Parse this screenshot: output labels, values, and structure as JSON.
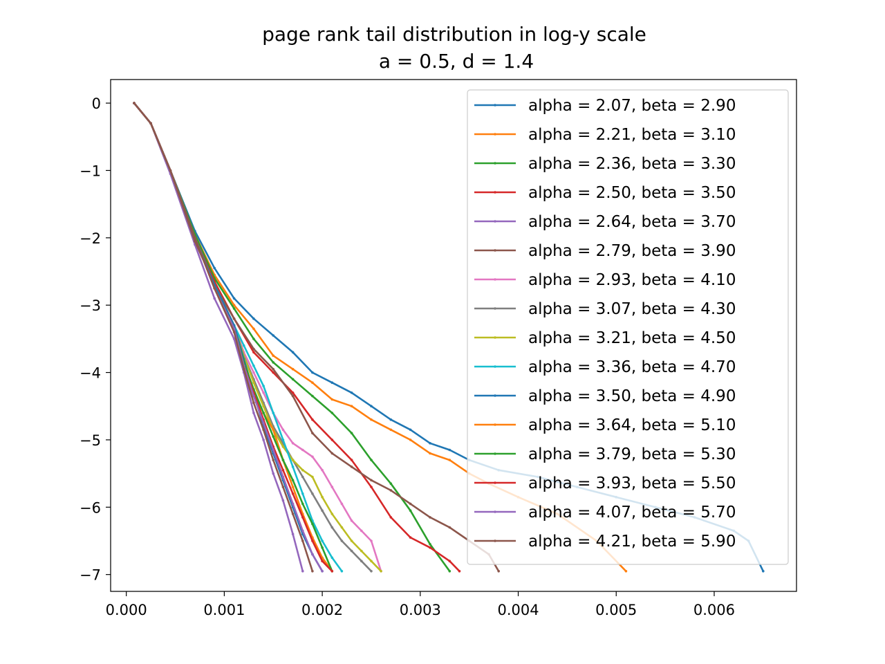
{
  "chart_data": {
    "type": "line",
    "title": "page rank tail distribution in log-y scale",
    "subtitle": "a = 0.5, d = 1.4",
    "xlabel": "",
    "ylabel": "",
    "xlim": [
      -0.00016,
      0.00684
    ],
    "ylim": [
      -7.25,
      0.35
    ],
    "xticks": [
      0.0,
      0.001,
      0.002,
      0.003,
      0.004,
      0.005,
      0.006
    ],
    "xtick_labels": [
      "0.000",
      "0.001",
      "0.002",
      "0.003",
      "0.004",
      "0.005",
      "0.006"
    ],
    "yticks": [
      0,
      -1,
      -2,
      -3,
      -4,
      -5,
      -6,
      -7
    ],
    "ytick_labels": [
      "0",
      "−1",
      "−2",
      "−3",
      "−4",
      "−5",
      "−6",
      "−7"
    ],
    "grid": false,
    "legend_position": "upper-right",
    "series": [
      {
        "name": "alpha = 2.07, beta = 2.90",
        "color": "#1f77b4",
        "x": [
          8e-05,
          0.00025,
          0.00045,
          0.0007,
          0.0009,
          0.0011,
          0.0013,
          0.0015,
          0.0017,
          0.0019,
          0.0021,
          0.0023,
          0.0025,
          0.0027,
          0.0029,
          0.0031,
          0.0033,
          0.0035,
          0.0038,
          0.0042,
          0.0046,
          0.005,
          0.0054,
          0.0058,
          0.0062,
          0.00635,
          0.0065
        ],
        "y": [
          0.0,
          -0.3,
          -1.0,
          -1.9,
          -2.45,
          -2.9,
          -3.2,
          -3.45,
          -3.7,
          -4.0,
          -4.15,
          -4.3,
          -4.5,
          -4.7,
          -4.85,
          -5.05,
          -5.15,
          -5.3,
          -5.45,
          -5.55,
          -5.7,
          -5.85,
          -6.0,
          -6.15,
          -6.35,
          -6.5,
          -6.95
        ]
      },
      {
        "name": "alpha = 2.21, beta = 3.10",
        "color": "#ff7f0e",
        "x": [
          8e-05,
          0.00025,
          0.00045,
          0.0007,
          0.0009,
          0.0011,
          0.0013,
          0.0015,
          0.0017,
          0.0019,
          0.0021,
          0.0023,
          0.0025,
          0.0027,
          0.0029,
          0.0031,
          0.0033,
          0.0035,
          0.0037,
          0.004,
          0.0044,
          0.0048,
          0.0051
        ],
        "y": [
          0.0,
          -0.3,
          -1.0,
          -1.95,
          -2.55,
          -3.0,
          -3.35,
          -3.75,
          -3.95,
          -4.15,
          -4.4,
          -4.5,
          -4.7,
          -4.85,
          -5.0,
          -5.2,
          -5.3,
          -5.5,
          -5.65,
          -5.85,
          -6.1,
          -6.5,
          -6.95
        ]
      },
      {
        "name": "alpha = 2.36, beta = 3.30",
        "color": "#2ca02c",
        "x": [
          8e-05,
          0.00025,
          0.00045,
          0.0007,
          0.0009,
          0.0011,
          0.0013,
          0.0015,
          0.0017,
          0.0019,
          0.0021,
          0.0023,
          0.0025,
          0.0027,
          0.0029,
          0.0031,
          0.0033
        ],
        "y": [
          0.0,
          -0.3,
          -1.0,
          -1.95,
          -2.6,
          -3.05,
          -3.5,
          -3.85,
          -4.1,
          -4.35,
          -4.6,
          -4.9,
          -5.3,
          -5.65,
          -6.05,
          -6.55,
          -6.95
        ]
      },
      {
        "name": "alpha = 2.50, beta = 3.50",
        "color": "#d62728",
        "x": [
          8e-05,
          0.00025,
          0.00045,
          0.0007,
          0.0009,
          0.0011,
          0.0013,
          0.0015,
          0.0017,
          0.0019,
          0.0021,
          0.0023,
          0.0025,
          0.0027,
          0.0029,
          0.0031,
          0.0033,
          0.0034
        ],
        "y": [
          0.0,
          -0.3,
          -1.0,
          -2.0,
          -2.65,
          -3.2,
          -3.7,
          -4.0,
          -4.3,
          -4.7,
          -5.0,
          -5.3,
          -5.7,
          -6.15,
          -6.45,
          -6.6,
          -6.8,
          -6.95
        ]
      },
      {
        "name": "alpha = 2.64, beta = 3.70",
        "color": "#9467bd",
        "x": [
          8e-05,
          0.00025,
          0.00045,
          0.0007,
          0.0009,
          0.0011,
          0.0012,
          0.0013,
          0.0014,
          0.0015,
          0.0016,
          0.0017,
          0.0018
        ],
        "y": [
          0.0,
          -0.3,
          -1.05,
          -2.1,
          -2.9,
          -3.5,
          -4.0,
          -4.6,
          -5.0,
          -5.5,
          -5.9,
          -6.4,
          -6.95
        ]
      },
      {
        "name": "alpha = 2.79, beta = 3.90",
        "color": "#8c564b",
        "x": [
          8e-05,
          0.00025,
          0.00045,
          0.0007,
          0.0009,
          0.0011,
          0.0013,
          0.0015,
          0.0017,
          0.0019,
          0.0021,
          0.0023,
          0.0025,
          0.0027,
          0.0029,
          0.0031,
          0.0033,
          0.0035,
          0.0037,
          0.0038
        ],
        "y": [
          0.0,
          -0.3,
          -1.0,
          -2.05,
          -2.7,
          -3.2,
          -3.65,
          -3.95,
          -4.35,
          -4.9,
          -5.2,
          -5.4,
          -5.6,
          -5.75,
          -5.95,
          -6.15,
          -6.3,
          -6.5,
          -6.7,
          -6.95
        ]
      },
      {
        "name": "alpha = 2.93, beta = 4.10",
        "color": "#e377c2",
        "x": [
          8e-05,
          0.00025,
          0.00045,
          0.0007,
          0.0009,
          0.0011,
          0.0012,
          0.0013,
          0.0014,
          0.0015,
          0.0016,
          0.0017,
          0.0018,
          0.0019,
          0.002,
          0.0021,
          0.0022,
          0.0023,
          0.0024,
          0.0025,
          0.0026
        ],
        "y": [
          0.0,
          -0.3,
          -1.0,
          -2.0,
          -2.7,
          -3.3,
          -3.7,
          -4.0,
          -4.3,
          -4.6,
          -4.85,
          -5.05,
          -5.15,
          -5.25,
          -5.45,
          -5.7,
          -5.95,
          -6.2,
          -6.35,
          -6.5,
          -6.95
        ]
      },
      {
        "name": "alpha = 3.07, beta = 4.30",
        "color": "#7f7f7f",
        "x": [
          8e-05,
          0.00025,
          0.00045,
          0.0007,
          0.0009,
          0.0011,
          0.0012,
          0.0013,
          0.0014,
          0.0015,
          0.0016,
          0.0017,
          0.0018,
          0.0019,
          0.002,
          0.0021,
          0.0022,
          0.0023,
          0.0024,
          0.0025
        ],
        "y": [
          0.0,
          -0.3,
          -1.0,
          -2.0,
          -2.7,
          -3.3,
          -3.75,
          -4.1,
          -4.45,
          -4.8,
          -5.05,
          -5.3,
          -5.55,
          -5.8,
          -6.05,
          -6.3,
          -6.5,
          -6.65,
          -6.8,
          -6.95
        ]
      },
      {
        "name": "alpha = 3.21, beta = 4.50",
        "color": "#bcbd22",
        "x": [
          8e-05,
          0.00025,
          0.00045,
          0.0007,
          0.0009,
          0.0011,
          0.0012,
          0.0013,
          0.0014,
          0.0015,
          0.0016,
          0.0017,
          0.0018,
          0.0019,
          0.002,
          0.0021,
          0.0022,
          0.0023,
          0.0024,
          0.0025,
          0.0026
        ],
        "y": [
          0.0,
          -0.3,
          -1.0,
          -2.0,
          -2.7,
          -3.3,
          -3.75,
          -4.15,
          -4.5,
          -4.85,
          -5.1,
          -5.3,
          -5.45,
          -5.55,
          -5.85,
          -6.1,
          -6.3,
          -6.5,
          -6.65,
          -6.8,
          -6.95
        ]
      },
      {
        "name": "alpha = 3.36, beta = 4.70",
        "color": "#17becf",
        "x": [
          8e-05,
          0.00025,
          0.00045,
          0.0007,
          0.0009,
          0.0011,
          0.0012,
          0.0013,
          0.0014,
          0.0015,
          0.0016,
          0.0017,
          0.0018,
          0.0019,
          0.002,
          0.0021,
          0.0022
        ],
        "y": [
          0.0,
          -0.3,
          -1.0,
          -2.0,
          -2.7,
          -3.3,
          -3.6,
          -3.9,
          -4.2,
          -4.6,
          -5.0,
          -5.4,
          -5.8,
          -6.2,
          -6.5,
          -6.75,
          -6.95
        ]
      },
      {
        "name": "alpha = 3.50, beta = 4.90",
        "color": "#1f77b4",
        "x": [
          8e-05,
          0.00025,
          0.00045,
          0.0007,
          0.0009,
          0.0011,
          0.0012,
          0.0013,
          0.0014,
          0.0015,
          0.0016,
          0.0017,
          0.0018,
          0.0019,
          0.002
        ],
        "y": [
          0.0,
          -0.3,
          -1.0,
          -2.0,
          -2.7,
          -3.3,
          -3.8,
          -4.3,
          -4.8,
          -5.2,
          -5.6,
          -6.0,
          -6.4,
          -6.7,
          -6.95
        ]
      },
      {
        "name": "alpha = 3.64, beta = 5.10",
        "color": "#ff7f0e",
        "x": [
          8e-05,
          0.00025,
          0.00045,
          0.0007,
          0.0009,
          0.0011,
          0.0012,
          0.0013,
          0.0014,
          0.0015,
          0.0016,
          0.0017,
          0.0018,
          0.0019,
          0.002,
          0.0021
        ],
        "y": [
          0.0,
          -0.3,
          -1.0,
          -2.0,
          -2.75,
          -3.35,
          -3.9,
          -4.3,
          -4.6,
          -4.85,
          -5.3,
          -5.7,
          -6.1,
          -6.45,
          -6.75,
          -6.95
        ]
      },
      {
        "name": "alpha = 3.79, beta = 5.30",
        "color": "#2ca02c",
        "x": [
          8e-05,
          0.00025,
          0.00045,
          0.0007,
          0.0009,
          0.0011,
          0.0012,
          0.0013,
          0.0014,
          0.0015,
          0.0016,
          0.0017,
          0.0018,
          0.0019,
          0.002,
          0.0021
        ],
        "y": [
          0.0,
          -0.3,
          -1.0,
          -2.0,
          -2.75,
          -3.35,
          -3.85,
          -4.25,
          -4.6,
          -4.95,
          -5.3,
          -5.6,
          -5.95,
          -6.25,
          -6.6,
          -6.95
        ]
      },
      {
        "name": "alpha = 3.93, beta = 5.50",
        "color": "#d62728",
        "x": [
          8e-05,
          0.00025,
          0.00045,
          0.0007,
          0.0009,
          0.0011,
          0.0012,
          0.0013,
          0.0014,
          0.0015,
          0.0016,
          0.0017,
          0.0018,
          0.0019,
          0.002,
          0.0021
        ],
        "y": [
          0.0,
          -0.3,
          -1.0,
          -2.0,
          -2.75,
          -3.35,
          -3.9,
          -4.3,
          -4.7,
          -5.1,
          -5.45,
          -5.8,
          -6.15,
          -6.5,
          -6.8,
          -6.95
        ]
      },
      {
        "name": "alpha = 4.07, beta = 5.70",
        "color": "#9467bd",
        "x": [
          8e-05,
          0.00025,
          0.00045,
          0.0007,
          0.0009,
          0.0011,
          0.0012,
          0.0013,
          0.0014,
          0.0015,
          0.0016,
          0.0017,
          0.0018,
          0.0019,
          0.002
        ],
        "y": [
          0.0,
          -0.3,
          -1.0,
          -2.0,
          -2.75,
          -3.35,
          -3.9,
          -4.35,
          -4.75,
          -5.15,
          -5.55,
          -5.95,
          -6.35,
          -6.7,
          -6.95
        ]
      },
      {
        "name": "alpha = 4.21, beta = 5.90",
        "color": "#8c564b",
        "x": [
          8e-05,
          0.00025,
          0.00045,
          0.0007,
          0.0009,
          0.0011,
          0.0012,
          0.0013,
          0.0014,
          0.0015,
          0.0016,
          0.0017,
          0.0018,
          0.0019
        ],
        "y": [
          0.0,
          -0.3,
          -1.0,
          -2.0,
          -2.75,
          -3.4,
          -3.95,
          -4.45,
          -4.85,
          -5.3,
          -5.7,
          -6.1,
          -6.5,
          -6.95
        ]
      }
    ]
  }
}
